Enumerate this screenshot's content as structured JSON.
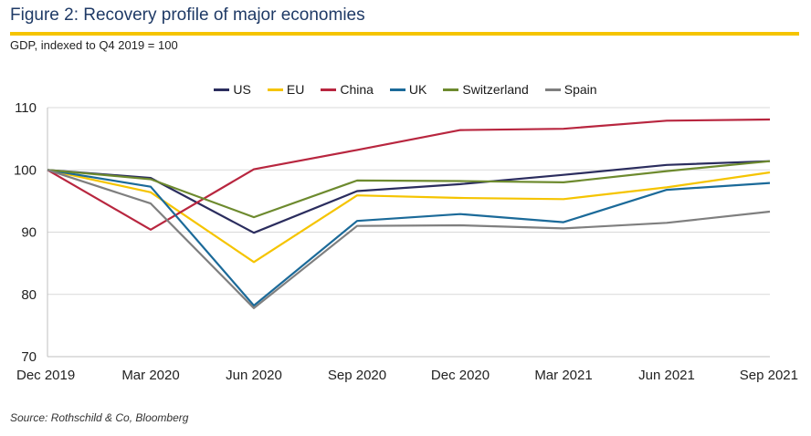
{
  "header": {
    "title": "Figure 2: Recovery profile of major economies",
    "subtitle": "GDP, indexed to Q4 2019 = 100"
  },
  "footer": {
    "source": "Source: Rothschild & Co, Bloomberg"
  },
  "colors": {
    "accent_rule": "#f5c400",
    "title": "#1f3a66",
    "grid": "#d9d9d9"
  },
  "chart_data": {
    "type": "line",
    "title": "Figure 2: Recovery profile of major economies",
    "subtitle": "GDP, indexed to Q4 2019 = 100",
    "categories": [
      "Dec 2019",
      "Mar 2020",
      "Jun 2020",
      "Sep 2020",
      "Dec 2020",
      "Mar 2021",
      "Jun 2021",
      "Sep 2021"
    ],
    "ylim": [
      70,
      110
    ],
    "yticks": [
      70,
      80,
      90,
      100,
      110
    ],
    "grid": true,
    "legend_position": "top",
    "series": [
      {
        "name": "US",
        "color": "#2b2d5e",
        "values": [
          100,
          98.7,
          89.9,
          96.6,
          97.7,
          99.2,
          100.8,
          101.4
        ]
      },
      {
        "name": "EU",
        "color": "#f5c400",
        "values": [
          100,
          96.4,
          85.2,
          95.9,
          95.5,
          95.3,
          97.2,
          99.6
        ]
      },
      {
        "name": "China",
        "color": "#b8263f",
        "values": [
          100,
          90.4,
          100.1,
          103.2,
          106.4,
          106.6,
          107.9,
          108.1
        ]
      },
      {
        "name": "UK",
        "color": "#1b6a99",
        "values": [
          100,
          97.3,
          78.2,
          91.8,
          92.9,
          91.6,
          96.8,
          97.9
        ]
      },
      {
        "name": "Switzerland",
        "color": "#6d8a2e",
        "values": [
          100,
          98.5,
          92.4,
          98.3,
          98.2,
          98.0,
          99.8,
          101.4
        ]
      },
      {
        "name": "Spain",
        "color": "#7f7f7f",
        "values": [
          100,
          94.6,
          77.8,
          91.0,
          91.1,
          90.6,
          91.5,
          93.3
        ]
      }
    ]
  }
}
